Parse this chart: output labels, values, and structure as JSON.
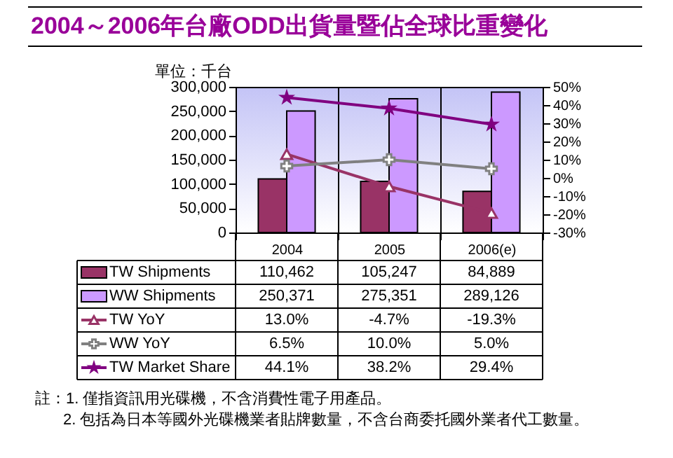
{
  "chart_data": {
    "type": "bar",
    "title": "2004～2006年台廠ODD出貨量暨佔全球比重變化",
    "ylabel": "單位：千台",
    "categories": [
      "2004",
      "2005",
      "2006(e)"
    ],
    "ylim": [
      0,
      300000
    ],
    "yticks": [
      0,
      {
        "value": 50000,
        "label": "50,000"
      },
      {
        "value": 100000,
        "label": "100,000"
      },
      {
        "value": 150000,
        "label": "150,000"
      },
      {
        "value": 200000,
        "label": "200,000"
      },
      {
        "value": 250000,
        "label": "250,000"
      },
      {
        "value": 300000,
        "label": "300,000"
      }
    ],
    "y2lim": [
      -30,
      50
    ],
    "y2ticks": [
      {
        "value": -30,
        "label": "-30%"
      },
      {
        "value": -20,
        "label": "-20%"
      },
      {
        "value": -10,
        "label": "-10%"
      },
      {
        "value": 0,
        "label": "0%"
      },
      {
        "value": 10,
        "label": "10%"
      },
      {
        "value": 20,
        "label": "20%"
      },
      {
        "value": 30,
        "label": "30%"
      },
      {
        "value": 40,
        "label": "40%"
      },
      {
        "value": 50,
        "label": "50%"
      }
    ],
    "grid": "x",
    "legend": "bottom",
    "series": [
      {
        "name": "TW Shipments",
        "type": "bar",
        "color": "#993366",
        "values": [
          110462,
          105247,
          84889
        ],
        "value_labels": [
          "110,462",
          "105,247",
          "84,889"
        ]
      },
      {
        "name": "WW Shipments",
        "type": "bar",
        "color": "#cc99ff",
        "values": [
          250371,
          275351,
          289126
        ],
        "value_labels": [
          "250,371",
          "275,351",
          "289,126"
        ]
      },
      {
        "name": "TW YoY",
        "type": "line",
        "axis": "y2",
        "marker": "triangle",
        "color": "#993366",
        "values": [
          13.0,
          -4.7,
          -19.3
        ],
        "value_labels": [
          "13.0%",
          "-4.7%",
          "-19.3%"
        ]
      },
      {
        "name": "WW YoY",
        "type": "line",
        "axis": "y2",
        "marker": "cross",
        "color": "#808080",
        "values": [
          6.5,
          10.0,
          5.0
        ],
        "value_labels": [
          "6.5%",
          "10.0%",
          "5.0%"
        ]
      },
      {
        "name": "TW Market Share",
        "type": "line",
        "axis": "y2",
        "marker": "star",
        "color": "#800080",
        "values": [
          44.1,
          38.2,
          29.4
        ],
        "value_labels": [
          "44.1%",
          "38.2%",
          "29.4%"
        ]
      }
    ],
    "annotations": [
      "註：1. 僅指資訊用光碟機，不含消費性電子用產品。",
      "2. 包括為日本等國外光碟機業者貼牌數量，不含台商委托國外業者代工數量。"
    ]
  }
}
